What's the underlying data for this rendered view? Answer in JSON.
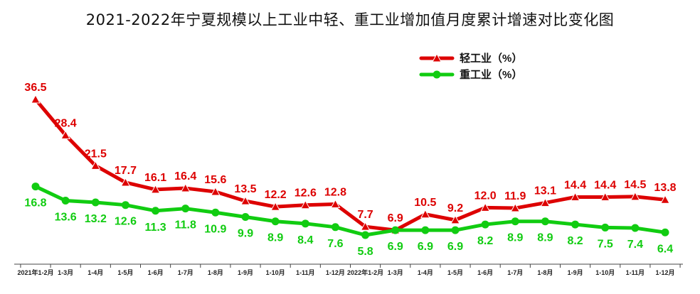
{
  "chart_data": {
    "type": "line",
    "title": "2021-2022年宁夏规模以上工业中轻、重工业增加值月度累计增速对比变化图",
    "categories": [
      "2021年1-2月",
      "1-3月",
      "1-4月",
      "1-5月",
      "1-6月",
      "1-7月",
      "1-8月",
      "1-9月",
      "1-10月",
      "1-11月",
      "1-12月",
      "2022年1-2月",
      "1-3月",
      "1-4月",
      "1-5月",
      "1-6月",
      "1-7月",
      "1-8月",
      "1-9月",
      "1-10月",
      "1-11月",
      "1-12月"
    ],
    "series": [
      {
        "name": "轻工业（%）",
        "color": "#dd0000",
        "marker": "triangle",
        "values": [
          36.5,
          28.4,
          21.5,
          17.7,
          16.1,
          16.4,
          15.6,
          13.5,
          12.2,
          12.6,
          12.8,
          7.7,
          6.9,
          10.5,
          9.2,
          12.0,
          11.9,
          13.1,
          14.4,
          14.4,
          14.5,
          13.8
        ]
      },
      {
        "name": "重工业（%）",
        "color": "#11cc11",
        "marker": "circle",
        "values": [
          16.8,
          13.6,
          13.2,
          12.6,
          11.3,
          11.8,
          10.9,
          9.9,
          8.9,
          8.4,
          7.6,
          5.8,
          6.9,
          6.9,
          6.9,
          8.2,
          8.9,
          8.9,
          8.2,
          7.5,
          7.4,
          6.4
        ]
      }
    ],
    "value_labels": {
      "light": [
        "36.5",
        "28.4",
        "21.5",
        "17.7",
        "16.1",
        "16.4",
        "15.6",
        "13.5",
        "12.2",
        "12.6",
        "12.8",
        "7.7",
        "6.9",
        "10.5",
        "9.2",
        "12.0",
        "11.9",
        "13.1",
        "14.4",
        "14.4",
        "14.5",
        "13.8"
      ],
      "heavy": [
        "16.8",
        "13.6",
        "13.2",
        "12.6",
        "11.3",
        "11.8",
        "10.9",
        "9.9",
        "8.9",
        "8.4",
        "7.6",
        "5.8",
        "6.9",
        "6.9",
        "6.9",
        "8.2",
        "8.9",
        "8.9",
        "8.2",
        "7.5",
        "7.4",
        "6.4"
      ]
    },
    "legend_position": "top-right",
    "grid": false
  }
}
